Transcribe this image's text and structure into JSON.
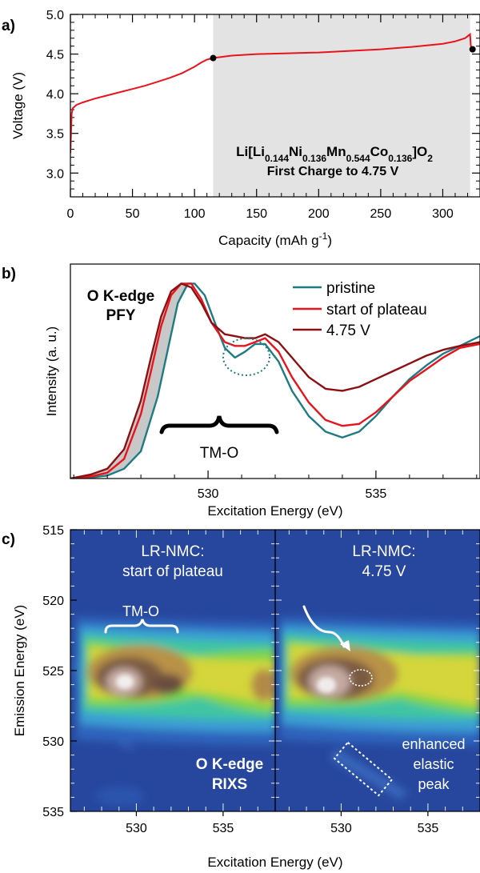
{
  "colors": {
    "pristine": "#1e7b82",
    "start_of_plateau": "#e8141c",
    "v475": "#8c0f12",
    "plateau_shade": "#e3e3e3",
    "tmo_fill": "#c8c8c8"
  },
  "chart_data": [
    {
      "panel_label": "a)",
      "type": "line",
      "xlabel_main": "Capacity (mAh g",
      "xlabel_sup": "-1",
      "xlabel_end": ")",
      "ylabel": "Voltage (V)",
      "xlim": [
        0,
        330
      ],
      "ylim": [
        2.7,
        5.0
      ],
      "x_ticks": [
        0,
        50,
        100,
        150,
        200,
        250,
        300
      ],
      "y_ticks": [
        3.0,
        3.5,
        4.0,
        4.5,
        5.0
      ],
      "x_tick_labels": [
        "0",
        "50",
        "100",
        "150",
        "200",
        "250",
        "300"
      ],
      "y_tick_labels": [
        "3.0",
        "3.5",
        "4.0",
        "4.5",
        "5.0"
      ],
      "shaded_region": [
        115,
        322
      ],
      "series": [
        {
          "color": "#e8141c",
          "x": [
            0,
            0.5,
            1,
            2,
            5,
            10,
            20,
            30,
            40,
            50,
            60,
            70,
            80,
            90,
            100,
            105,
            110,
            115,
            120,
            130,
            150,
            175,
            200,
            225,
            250,
            275,
            300,
            310,
            318,
            322,
            322.5,
            323,
            324
          ],
          "y": [
            3.25,
            3.5,
            3.75,
            3.82,
            3.86,
            3.89,
            3.94,
            3.98,
            4.02,
            4.06,
            4.1,
            4.15,
            4.2,
            4.26,
            4.34,
            4.39,
            4.43,
            4.45,
            4.46,
            4.48,
            4.5,
            4.51,
            4.52,
            4.54,
            4.56,
            4.59,
            4.63,
            4.66,
            4.7,
            4.75,
            4.62,
            4.58,
            4.56
          ]
        }
      ],
      "markers": [
        {
          "x": 115,
          "y": 4.45
        },
        {
          "x": 324,
          "y": 4.56
        }
      ],
      "formula": {
        "base1": "Li[Li",
        "sub1": "0.144",
        "base2": "Ni",
        "sub2": "0.136",
        "base3": "Mn",
        "sub3": "0.544",
        "base4": "Co",
        "sub4": "0.136",
        "base5": "]O",
        "sub5": "2"
      },
      "annotation": "First Charge to 4.75 V"
    },
    {
      "panel_label": "b)",
      "type": "line",
      "xlabel": "Excitation Energy (eV)",
      "ylabel": "Intensity (a. u.)",
      "xlim": [
        525.9,
        538.1
      ],
      "ylim": [
        0,
        1.1
      ],
      "x_ticks": [
        530,
        535
      ],
      "x_tick_labels": [
        "530",
        "535"
      ],
      "title_line1": "O K-edge",
      "title_line2": "PFY",
      "bracket_label": "TM-O",
      "legend": [
        "pristine",
        "start of plateau",
        "4.75 V"
      ],
      "series": [
        {
          "name": "pristine",
          "color": "#1e7b82",
          "x": [
            525.9,
            526.5,
            527.0,
            527.5,
            528.0,
            528.5,
            528.8,
            529.1,
            529.4,
            529.6,
            529.9,
            530.2,
            530.5,
            530.8,
            531.1,
            531.4,
            531.7,
            532.1,
            532.5,
            533.0,
            533.5,
            534.0,
            534.5,
            535.0,
            535.5,
            536.0,
            536.5,
            537.0,
            537.5,
            538.1
          ],
          "y": [
            0.0,
            0.005,
            0.015,
            0.05,
            0.14,
            0.42,
            0.66,
            0.9,
            1.0,
            1.0,
            0.94,
            0.8,
            0.67,
            0.62,
            0.65,
            0.69,
            0.69,
            0.6,
            0.45,
            0.32,
            0.24,
            0.21,
            0.24,
            0.32,
            0.42,
            0.51,
            0.58,
            0.64,
            0.68,
            0.73
          ]
        },
        {
          "name": "start of plateau",
          "color": "#e8141c",
          "x": [
            525.9,
            526.5,
            527.0,
            527.5,
            528.0,
            528.3,
            528.6,
            528.9,
            529.2,
            529.5,
            529.8,
            530.1,
            530.5,
            530.8,
            531.1,
            531.4,
            531.7,
            532.1,
            532.5,
            533.0,
            533.5,
            534.0,
            534.5,
            535.0,
            535.5,
            536.0,
            536.5,
            537.0,
            537.5,
            538.1
          ],
          "y": [
            0.0,
            0.01,
            0.03,
            0.1,
            0.33,
            0.55,
            0.78,
            0.94,
            1.0,
            1.0,
            0.92,
            0.8,
            0.7,
            0.68,
            0.68,
            0.7,
            0.72,
            0.65,
            0.52,
            0.39,
            0.3,
            0.27,
            0.28,
            0.34,
            0.42,
            0.5,
            0.56,
            0.62,
            0.67,
            0.69
          ]
        },
        {
          "name": "4.75 V",
          "color": "#8c0f12",
          "x": [
            525.9,
            526.5,
            527.0,
            527.5,
            528.0,
            528.3,
            528.6,
            528.9,
            529.2,
            529.5,
            529.8,
            530.1,
            530.5,
            530.8,
            531.1,
            531.4,
            531.7,
            532.1,
            532.5,
            533.0,
            533.5,
            534.0,
            534.5,
            535.0,
            535.5,
            536.0,
            536.5,
            537.0,
            537.5,
            538.1
          ],
          "y": [
            0.0,
            0.02,
            0.05,
            0.15,
            0.4,
            0.62,
            0.83,
            0.96,
            1.0,
            0.98,
            0.9,
            0.8,
            0.74,
            0.73,
            0.72,
            0.72,
            0.74,
            0.7,
            0.62,
            0.52,
            0.46,
            0.45,
            0.47,
            0.51,
            0.55,
            0.59,
            0.63,
            0.66,
            0.68,
            0.7
          ]
        }
      ]
    },
    {
      "panel_label": "c)",
      "type": "heatmap",
      "xlabel": "Excitation Energy (eV)",
      "ylabel": "Emission Energy (eV)",
      "y_ticks": [
        515,
        520,
        525,
        530,
        535
      ],
      "y_tick_labels": [
        "515",
        "520",
        "525",
        "530",
        "535"
      ],
      "ylim": [
        515,
        535
      ],
      "panels": [
        {
          "xlim": [
            526.2,
            538.0
          ],
          "x_ticks": [
            530,
            535
          ],
          "x_tick_labels": [
            "530",
            "535"
          ],
          "label_line1": "LR-NMC:",
          "label_line2": "start of plateau",
          "bracket_label": "TM-O",
          "corner_line1": "O K-edge",
          "corner_line2": "RIXS"
        },
        {
          "xlim": [
            526.2,
            538.0
          ],
          "x_ticks": [
            530,
            535
          ],
          "x_tick_labels": [
            "530",
            "535"
          ],
          "label_line1": "LR-NMC:",
          "label_line2": "4.75 V",
          "note_line1": "enhanced",
          "note_line2": "elastic",
          "note_line3": "peak"
        }
      ]
    }
  ]
}
